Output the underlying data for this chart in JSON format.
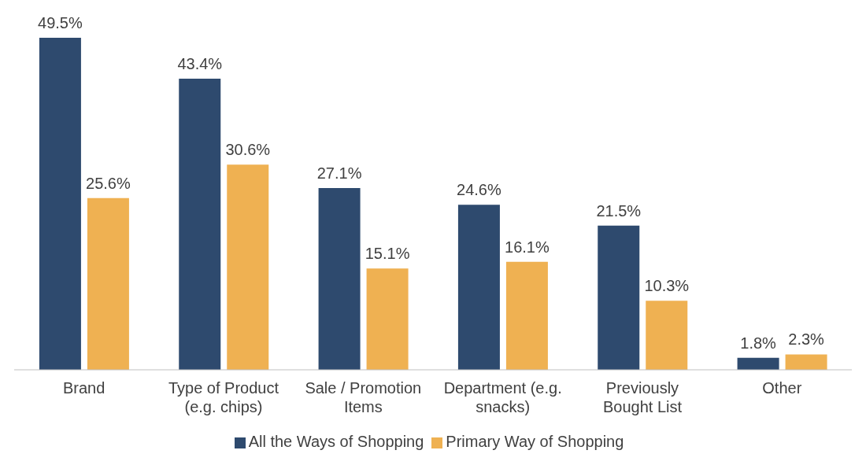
{
  "chart_data": {
    "type": "bar",
    "categories": [
      "Brand",
      "Type of Product (e.g. chips)",
      "Sale / Promotion Items",
      "Department (e.g. snacks)",
      "Previously Bought List",
      "Other"
    ],
    "series": [
      {
        "name": "All the Ways of Shopping",
        "color": "#2e4a6e",
        "values": [
          49.5,
          43.4,
          27.1,
          24.6,
          21.5,
          1.8
        ],
        "value_labels": [
          "49.5%",
          "43.4%",
          "27.1%",
          "24.6%",
          "21.5%",
          "1.8%"
        ]
      },
      {
        "name": "Primary Way of Shopping",
        "color": "#efb152",
        "values": [
          25.6,
          30.6,
          15.1,
          16.1,
          10.3,
          2.3
        ],
        "value_labels": [
          "25.6%",
          "30.6%",
          "15.1%",
          "16.1%",
          "10.3%",
          "2.3%"
        ]
      }
    ],
    "legend": "bottom",
    "grid": false
  }
}
